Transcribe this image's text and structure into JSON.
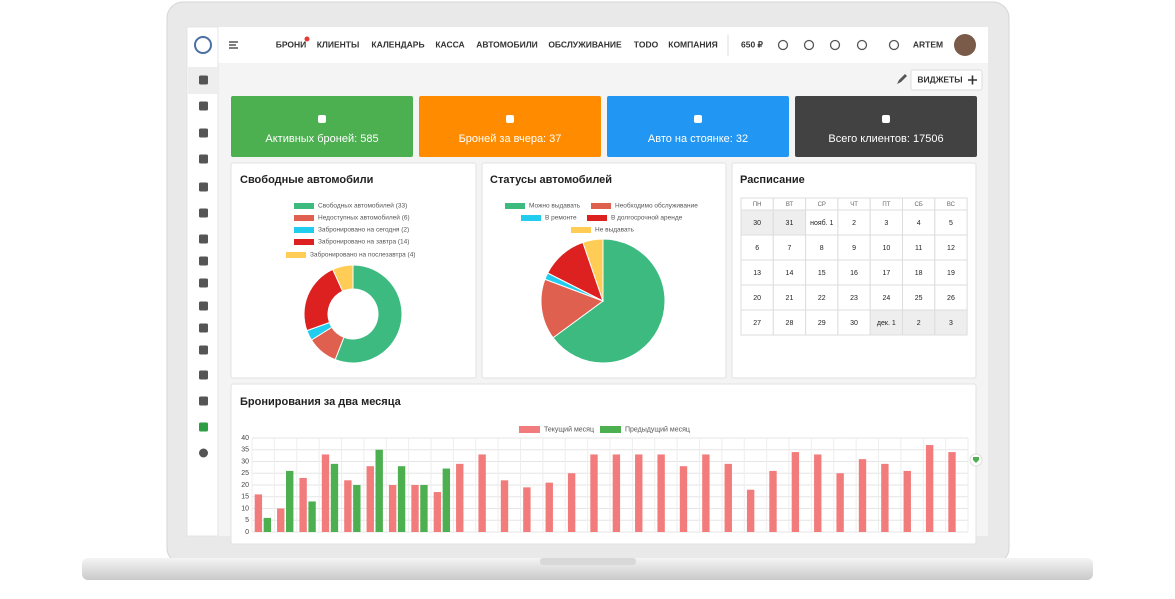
{
  "nav": {
    "items": [
      "БРОНИ",
      "КЛИЕНТЫ",
      "КАЛЕНДАРЬ",
      "КАССА",
      "АВТОМОБИЛИ",
      "ОБСЛУЖИВАНИЕ",
      "TODO",
      "КОМПАНИЯ"
    ],
    "balance": "650 ₽",
    "user": "ARTEM"
  },
  "toolbar": {
    "widgets_button": "ВИДЖЕТЫ"
  },
  "stats": [
    {
      "label": "Активных броней: 585",
      "color": "#4caf50"
    },
    {
      "label": "Броней за вчера: 37",
      "color": "#ff8c00"
    },
    {
      "label": "Авто на стоянке: 32",
      "color": "#2196f3"
    },
    {
      "label": "Всего клиентов: 17506",
      "color": "#424242"
    }
  ],
  "schedule": {
    "title": "Расписание",
    "days": [
      "ПН",
      "ВТ",
      "СР",
      "ЧТ",
      "ПТ",
      "СБ",
      "ВС"
    ],
    "weeks": [
      [
        "30",
        "31",
        "нояб. 1",
        "2",
        "3",
        "4",
        "5"
      ],
      [
        "6",
        "7",
        "8",
        "9",
        "10",
        "11",
        "12"
      ],
      [
        "13",
        "14",
        "15",
        "16",
        "17",
        "18",
        "19"
      ],
      [
        "20",
        "21",
        "22",
        "23",
        "24",
        "25",
        "26"
      ],
      [
        "27",
        "28",
        "29",
        "30",
        "дек. 1",
        "2",
        "3"
      ]
    ]
  },
  "chart_data": [
    {
      "type": "donut",
      "title": "Свободные автомобили",
      "categories": [
        "Свободных автомобилей (33)",
        "Недоступных автомобилей (6)",
        "Забронировано на сегодня (2)",
        "Забронировано на завтра (14)",
        "Забронировано на послезавтра (4)"
      ],
      "values": [
        33,
        6,
        2,
        14,
        4
      ],
      "colors": [
        "#3dba80",
        "#e06050",
        "#22ccee",
        "#dd2020",
        "#ffcc55"
      ]
    },
    {
      "type": "pie",
      "title": "Статусы автомобилей",
      "categories": [
        "Можно выдавать",
        "Необходимо обслуживание",
        "В ремонте",
        "В долгосрочной аренде",
        "Не выдавать"
      ],
      "values": [
        37,
        9,
        1,
        7,
        3
      ],
      "colors": [
        "#3dba80",
        "#e06050",
        "#22ccee",
        "#dd2020",
        "#ffcc55"
      ]
    },
    {
      "type": "bar",
      "title": "Бронирования за два месяца",
      "categories": [
        null,
        null,
        null,
        null,
        null,
        null,
        null,
        null,
        null,
        null,
        null,
        null,
        null,
        null,
        null,
        null,
        null,
        null,
        null,
        null,
        null,
        null,
        null,
        null,
        null,
        null,
        null,
        null,
        null,
        null,
        null,
        null
      ],
      "series": [
        {
          "name": "Текущий месяц",
          "color": "#f27c7c",
          "values": [
            16,
            10,
            23,
            33,
            22,
            28,
            20,
            20,
            17,
            29,
            33,
            22,
            19,
            21,
            25,
            33,
            33,
            33,
            33,
            28,
            33,
            29,
            18,
            26,
            34,
            33,
            25,
            31,
            29,
            26,
            37,
            34
          ]
        },
        {
          "name": "Предыдущий месяц",
          "color": "#4caf50",
          "values": [
            6,
            26,
            13,
            29,
            20,
            35,
            28,
            20,
            27,
            null,
            null,
            null,
            null,
            null,
            null,
            null,
            null,
            null,
            null,
            null,
            null,
            null,
            null,
            null,
            null,
            null,
            null,
            null,
            null,
            null,
            null,
            null
          ]
        }
      ],
      "ylim": [
        0,
        40
      ],
      "yticks": [
        0,
        5,
        10,
        15,
        20,
        25,
        30,
        35,
        40
      ],
      "grid": true
    }
  ]
}
